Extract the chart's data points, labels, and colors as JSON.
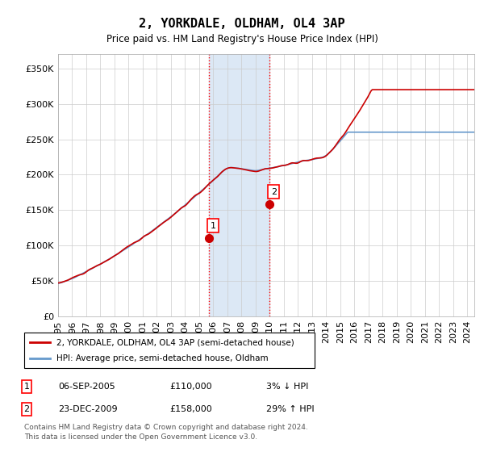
{
  "title": "2, YORKDALE, OLDHAM, OL4 3AP",
  "subtitle": "Price paid vs. HM Land Registry's House Price Index (HPI)",
  "ylabel_ticks": [
    "£0",
    "£50K",
    "£100K",
    "£150K",
    "£200K",
    "£250K",
    "£300K",
    "£350K"
  ],
  "ylabel_values": [
    0,
    50000,
    100000,
    150000,
    200000,
    250000,
    300000,
    350000
  ],
  "ylim": [
    0,
    370000
  ],
  "xlim_start": 1995.0,
  "xlim_end": 2024.5,
  "hpi_color": "#6699cc",
  "price_color": "#cc0000",
  "sale1_date": 2005.67,
  "sale1_price": 110000,
  "sale1_label": "1",
  "sale2_date": 2009.98,
  "sale2_price": 158000,
  "sale2_label": "2",
  "shade_start": 2005.67,
  "shade_end": 2009.98,
  "shade_color": "#dce8f5",
  "legend_line1": "2, YORKDALE, OLDHAM, OL4 3AP (semi-detached house)",
  "legend_line2": "HPI: Average price, semi-detached house, Oldham",
  "table_row1": [
    "1",
    "06-SEP-2005",
    "£110,000",
    "3% ↓ HPI"
  ],
  "table_row2": [
    "2",
    "23-DEC-2009",
    "£158,000",
    "29% ↑ HPI"
  ],
  "footnote": "Contains HM Land Registry data © Crown copyright and database right 2024.\nThis data is licensed under the Open Government Licence v3.0.",
  "xtick_years": [
    1995,
    1996,
    1997,
    1998,
    1999,
    2000,
    2001,
    2002,
    2003,
    2004,
    2005,
    2006,
    2007,
    2008,
    2009,
    2010,
    2011,
    2012,
    2013,
    2014,
    2015,
    2016,
    2017,
    2018,
    2019,
    2020,
    2021,
    2022,
    2023,
    2024
  ]
}
